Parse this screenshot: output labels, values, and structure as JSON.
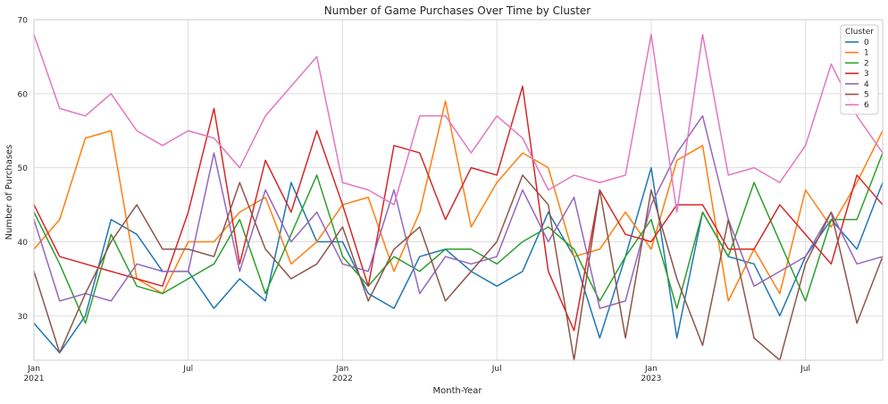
{
  "chart_data": {
    "type": "line",
    "title": "Number of Game Purchases Over Time by Cluster",
    "xlabel": "Month-Year",
    "ylabel": "Number of Purchases",
    "x": [
      "2021-01",
      "2021-02",
      "2021-03",
      "2021-04",
      "2021-05",
      "2021-06",
      "2021-07",
      "2021-08",
      "2021-09",
      "2021-10",
      "2021-11",
      "2021-12",
      "2022-01",
      "2022-02",
      "2022-03",
      "2022-04",
      "2022-05",
      "2022-06",
      "2022-07",
      "2022-08",
      "2022-09",
      "2022-10",
      "2022-11",
      "2022-12",
      "2023-01",
      "2023-02",
      "2023-03",
      "2023-04",
      "2023-05",
      "2023-06",
      "2023-07",
      "2023-08",
      "2023-09",
      "2023-10"
    ],
    "x_ticks": [
      {
        "date": "2021-01",
        "label": "Jan",
        "sublabel": "2021"
      },
      {
        "date": "2021-07",
        "label": "Jul",
        "sublabel": ""
      },
      {
        "date": "2022-01",
        "label": "Jan",
        "sublabel": "2022"
      },
      {
        "date": "2022-07",
        "label": "Jul",
        "sublabel": ""
      },
      {
        "date": "2023-01",
        "label": "Jan",
        "sublabel": "2023"
      },
      {
        "date": "2023-07",
        "label": "Jul",
        "sublabel": ""
      }
    ],
    "xlim": [
      "2021-01",
      "2023-10"
    ],
    "ylim": [
      24,
      70
    ],
    "y_ticks": [
      30,
      40,
      50,
      60,
      70
    ],
    "grid": true,
    "legend": {
      "title": "Cluster",
      "position": "top-right"
    },
    "series": [
      {
        "name": "0",
        "color": "#1f77b4",
        "values": [
          29,
          25,
          30,
          43,
          41,
          36,
          36,
          31,
          35,
          32,
          48,
          40,
          40,
          33,
          31,
          38,
          39,
          36,
          34,
          36,
          44,
          38,
          27,
          38,
          50,
          27,
          44,
          38,
          37,
          30,
          38,
          43,
          39,
          48
        ]
      },
      {
        "name": "1",
        "color": "#ff7f0e",
        "values": [
          39,
          43,
          54,
          55,
          35,
          33,
          40,
          40,
          44,
          46,
          37,
          40,
          45,
          46,
          36,
          44,
          59,
          42,
          48,
          52,
          50,
          38,
          39,
          44,
          39,
          51,
          53,
          32,
          39,
          33,
          47,
          42,
          48,
          55
        ]
      },
      {
        "name": "2",
        "color": "#2ca02c",
        "values": [
          44,
          37,
          29,
          41,
          34,
          33,
          35,
          37,
          43,
          33,
          41,
          49,
          38,
          34,
          38,
          36,
          39,
          39,
          37,
          40,
          42,
          39,
          32,
          38,
          43,
          31,
          44,
          38,
          48,
          40,
          32,
          43,
          43,
          52
        ]
      },
      {
        "name": "3",
        "color": "#d62728",
        "values": [
          45,
          38,
          37,
          36,
          35,
          34,
          44,
          58,
          37,
          51,
          44,
          55,
          45,
          34,
          53,
          52,
          43,
          50,
          49,
          61,
          36,
          28,
          47,
          41,
          40,
          45,
          45,
          39,
          39,
          45,
          41,
          37,
          49,
          45
        ]
      },
      {
        "name": "4",
        "color": "#9467bd",
        "values": [
          43,
          32,
          33,
          32,
          37,
          36,
          36,
          52,
          36,
          47,
          40,
          44,
          37,
          36,
          47,
          33,
          38,
          37,
          38,
          47,
          40,
          46,
          31,
          32,
          45,
          52,
          57,
          43,
          34,
          36,
          38,
          44,
          37,
          38
        ]
      },
      {
        "name": "5",
        "color": "#8c564b",
        "values": [
          36,
          25,
          33,
          40,
          45,
          39,
          39,
          38,
          48,
          39,
          35,
          37,
          42,
          32,
          39,
          42,
          32,
          36,
          40,
          49,
          45,
          24,
          47,
          27,
          47,
          35,
          26,
          43,
          27,
          24,
          37,
          44,
          29,
          38
        ]
      },
      {
        "name": "6",
        "color": "#e377c2",
        "values": [
          68,
          58,
          57,
          60,
          55,
          53,
          55,
          54,
          50,
          57,
          61,
          65,
          48,
          47,
          45,
          57,
          57,
          52,
          57,
          54,
          47,
          49,
          48,
          49,
          68,
          44,
          68,
          49,
          50,
          48,
          53,
          64,
          57,
          52
        ]
      }
    ]
  }
}
